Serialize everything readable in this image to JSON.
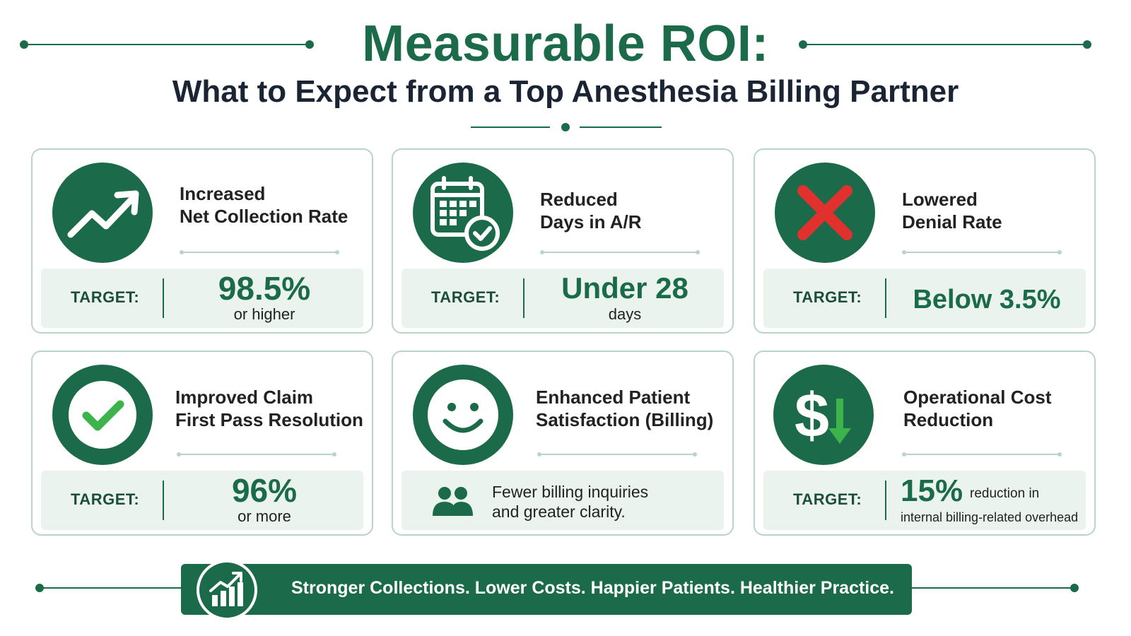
{
  "header": {
    "title": "Measurable ROI:",
    "subtitle": "What to Expect from a Top Anesthesia Billing Partner"
  },
  "colors": {
    "brand_green": "#1b6b4a",
    "light_green_panel": "#eaf3ee",
    "card_border": "#b9d5c7",
    "alert_red": "#e0312f",
    "check_green": "#3cb44b"
  },
  "cards": [
    {
      "icon": "trending-up-icon",
      "title": "Increased\nNet Collection Rate",
      "target_label": "TARGET:",
      "target_value": "98.5%",
      "target_sub": "or higher"
    },
    {
      "icon": "calendar-check-icon",
      "title": "Reduced\nDays in A/R",
      "target_label": "TARGET:",
      "target_value": "Under 28",
      "target_sub": "days"
    },
    {
      "icon": "red-x-icon",
      "title": "Lowered\nDenial Rate",
      "target_label": "TARGET:",
      "target_value": "Below 3.5%",
      "target_sub": ""
    },
    {
      "icon": "check-circle-icon",
      "title": "Improved Claim\nFirst Pass Resolution",
      "target_label": "TARGET:",
      "target_value": "96%",
      "target_sub": "or more"
    },
    {
      "icon": "smiley-face-icon",
      "title": "Enhanced Patient\nSatisfaction (Billing)",
      "note_icon": "people-icon",
      "note": "Fewer billing inquiries\nand greater clarity."
    },
    {
      "icon": "dollar-down-arrow-icon",
      "title": "Operational Cost\nReduction",
      "target_label": "TARGET:",
      "target_value": "15%",
      "target_value_suffix": "reduction in",
      "target_sub": "internal billing-related overhead"
    }
  ],
  "banner": {
    "icon": "bar-chart-growth-icon",
    "text": "Stronger Collections. Lower Costs. Happier Patients. Healthier Practice."
  }
}
